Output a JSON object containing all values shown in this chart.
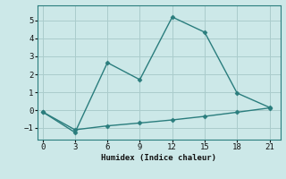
{
  "xlabel": "Humidex (Indice chaleur)",
  "background_color": "#cce8e8",
  "grid_color": "#aacccc",
  "line_color": "#2a7d7d",
  "line1_x": [
    0,
    3,
    6,
    9,
    12,
    15,
    18,
    21
  ],
  "line1_y": [
    -0.1,
    -1.25,
    2.65,
    1.7,
    5.2,
    4.35,
    0.95,
    0.15
  ],
  "line2_x": [
    0,
    3,
    6,
    9,
    12,
    15,
    18,
    21
  ],
  "line2_y": [
    -0.1,
    -1.1,
    -0.88,
    -0.72,
    -0.55,
    -0.35,
    -0.12,
    0.12
  ],
  "xlim": [
    -0.5,
    22
  ],
  "ylim": [
    -1.65,
    5.85
  ],
  "xticks": [
    0,
    3,
    6,
    9,
    12,
    15,
    18,
    21
  ],
  "yticks": [
    -1,
    0,
    1,
    2,
    3,
    4,
    5
  ],
  "marker": "D",
  "markersize": 2.5,
  "linewidth": 1.0
}
